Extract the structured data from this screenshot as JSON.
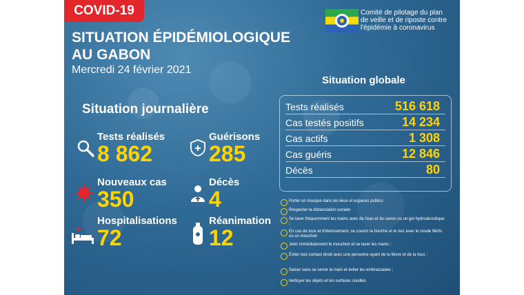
{
  "badge": "COVID-19",
  "title_line1": "SITUATION ÉPIDÉMIOLOGIQUE",
  "title_line2": "AU GABON",
  "date": "Mercredi 24 février 2021",
  "committee": {
    "line1": "Comité de pilotage du plan",
    "line2": "de veille et de riposte contre",
    "line3": "l'épidémie à coronavirus"
  },
  "daily": {
    "title": "Situation journalière",
    "tests": {
      "label": "Tests réalisés",
      "value": "8 862",
      "icon": "magnifier-icon"
    },
    "recoveries": {
      "label": "Guérisons",
      "value": "285",
      "icon": "healed-virus-icon"
    },
    "new_cases": {
      "label": "Nouveaux cas",
      "value": "350",
      "icon": "virus-icon"
    },
    "deaths": {
      "label": "Décès",
      "value": "4",
      "icon": "person-icon"
    },
    "hospital": {
      "label": "Hospitalisations",
      "value": "72",
      "icon": "hospital-bed-icon"
    },
    "icu": {
      "label": "Réanimation",
      "value": "12",
      "icon": "oxygen-tank-icon"
    }
  },
  "global": {
    "title": "Situation globale",
    "rows": [
      {
        "label": "Tests réalisés",
        "value": "516 618"
      },
      {
        "label": "Cas testés positifs",
        "value": "14 234"
      },
      {
        "label": "Cas actifs",
        "value": "1 308"
      },
      {
        "label": "Cas guéris",
        "value": "12 846"
      },
      {
        "label": "Décès",
        "value": "80"
      }
    ]
  },
  "advice": [
    "Porter un masque dans les lieux et espaces publics",
    "Respecter la distanciation sociale",
    "Se laver fréquemment les mains avec de l'eau et du savon ou un gel hydroalcoolique ;",
    "En cas de toux et d'éternuement, se couvrir la bouche et le nez avec le coude fléchi ou un mouchoir",
    "Jeter immédiatement le mouchoir et se laver les mains ;",
    "Éviter tout contact étroit avec une personne ayant de la fièvre et de la toux ;",
    "Saluer sans se serrer la main et éviter les embrassades ;",
    "Nettoyer les objets et les surfaces souillés"
  ],
  "colors": {
    "accent": "#ffd400",
    "badge": "#e3262b",
    "background": "#2f6a96"
  }
}
